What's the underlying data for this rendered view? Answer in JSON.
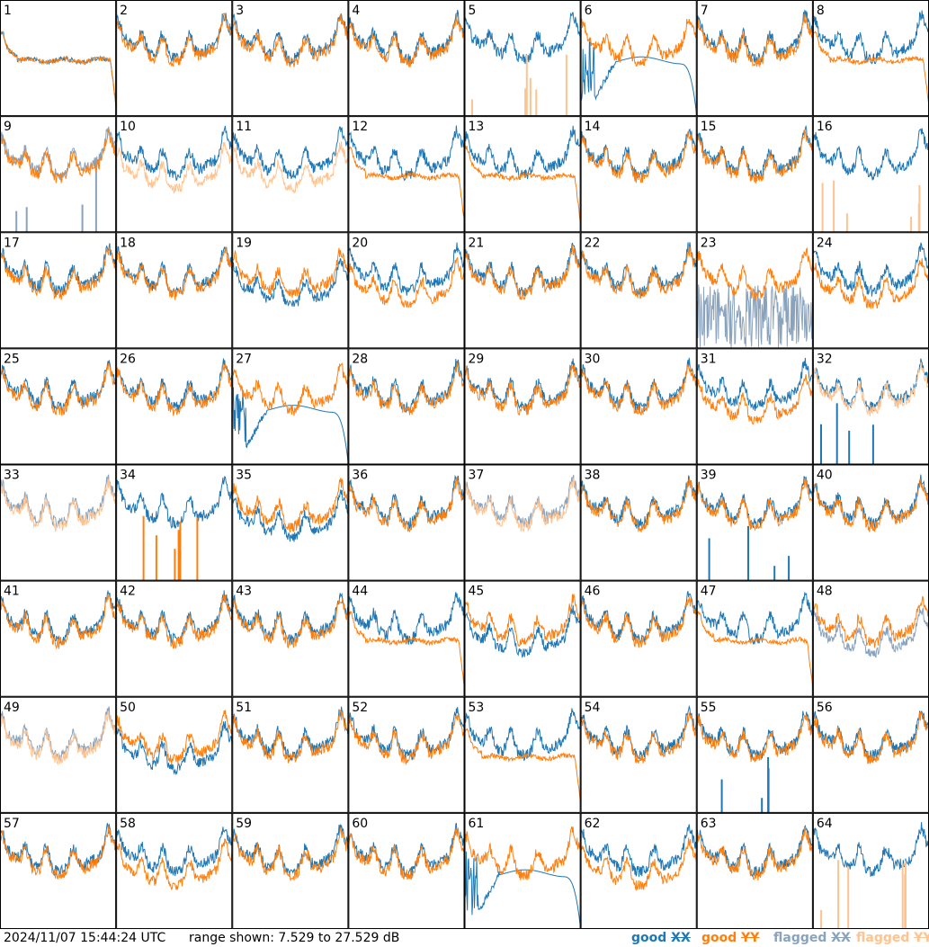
{
  "footer": {
    "timestamp": "2024/11/07 15:44:24 UTC",
    "range_text": "range shown: 7.529 to 27.529 dB"
  },
  "legend": [
    {
      "word": "good",
      "pol": "XX",
      "color": "#1f77b4"
    },
    {
      "word": "good",
      "pol": "YY",
      "color": "#ff7f0e"
    },
    {
      "word": "flagged",
      "pol": "XX",
      "color": "#8aa3bd"
    },
    {
      "word": "flagged",
      "pol": "YY",
      "color": "#ffc390"
    }
  ],
  "colors": {
    "good_xx": "#1f77b4",
    "good_yy": "#ff7f0e",
    "flagged_xx": "#8aa3bd",
    "flagged_yy": "#ffc390",
    "border": "#000000"
  },
  "chart_data": {
    "type": "line",
    "title": "",
    "xlabel": "",
    "ylabel": "",
    "ylim": [
      7.529,
      27.529
    ],
    "units": "dB",
    "grid": false,
    "legend_placement": "bottom-right",
    "rows": 8,
    "cols": 8,
    "panels": [
      {
        "label": "1",
        "xx": "good",
        "yy": "good",
        "xx_kind": "plateau",
        "yy_kind": "plateau"
      },
      {
        "label": "2",
        "xx": "good",
        "yy": "good",
        "xx_kind": "normal",
        "yy_kind": "normal"
      },
      {
        "label": "3",
        "xx": "good",
        "yy": "good",
        "xx_kind": "normal",
        "yy_kind": "normal"
      },
      {
        "label": "4",
        "xx": "good",
        "yy": "good",
        "xx_kind": "normal",
        "yy_kind": "normal"
      },
      {
        "label": "5",
        "xx": "good",
        "yy": "flagged",
        "xx_kind": "normal",
        "yy_kind": "spikes"
      },
      {
        "label": "6",
        "xx": "good",
        "yy": "good",
        "xx_kind": "dead",
        "yy_kind": "normal"
      },
      {
        "label": "7",
        "xx": "good",
        "yy": "good",
        "xx_kind": "normal",
        "yy_kind": "normal"
      },
      {
        "label": "8",
        "xx": "good",
        "yy": "good",
        "xx_kind": "normal",
        "yy_kind": "plateau"
      },
      {
        "label": "9",
        "xx": "flagged",
        "yy": "good",
        "xx_kind": "spikes",
        "yy_kind": "normal"
      },
      {
        "label": "10",
        "xx": "good",
        "yy": "flagged",
        "xx_kind": "normal",
        "yy_kind": "low"
      },
      {
        "label": "11",
        "xx": "good",
        "yy": "flagged",
        "xx_kind": "normal",
        "yy_kind": "low"
      },
      {
        "label": "12",
        "xx": "good",
        "yy": "good",
        "xx_kind": "normal",
        "yy_kind": "plateau"
      },
      {
        "label": "13",
        "xx": "good",
        "yy": "good",
        "xx_kind": "normal",
        "yy_kind": "plateau"
      },
      {
        "label": "14",
        "xx": "good",
        "yy": "good",
        "xx_kind": "normal",
        "yy_kind": "normal"
      },
      {
        "label": "15",
        "xx": "good",
        "yy": "good",
        "xx_kind": "normal",
        "yy_kind": "normal"
      },
      {
        "label": "16",
        "xx": "good",
        "yy": "flagged",
        "xx_kind": "normal",
        "yy_kind": "spikes"
      },
      {
        "label": "17",
        "xx": "good",
        "yy": "good",
        "xx_kind": "normal",
        "yy_kind": "normal"
      },
      {
        "label": "18",
        "xx": "good",
        "yy": "good",
        "xx_kind": "normal",
        "yy_kind": "normal"
      },
      {
        "label": "19",
        "xx": "good",
        "yy": "good",
        "xx_kind": "low",
        "yy_kind": "normal"
      },
      {
        "label": "20",
        "xx": "good",
        "yy": "good",
        "xx_kind": "normal",
        "yy_kind": "low"
      },
      {
        "label": "21",
        "xx": "good",
        "yy": "good",
        "xx_kind": "normal",
        "yy_kind": "normal"
      },
      {
        "label": "22",
        "xx": "good",
        "yy": "good",
        "xx_kind": "normal",
        "yy_kind": "normal"
      },
      {
        "label": "23",
        "xx": "flagged",
        "yy": "good",
        "xx_kind": "noisy",
        "yy_kind": "normal"
      },
      {
        "label": "24",
        "xx": "good",
        "yy": "good",
        "xx_kind": "normal",
        "yy_kind": "low"
      },
      {
        "label": "25",
        "xx": "good",
        "yy": "good",
        "xx_kind": "normal",
        "yy_kind": "normal"
      },
      {
        "label": "26",
        "xx": "good",
        "yy": "good",
        "xx_kind": "normal",
        "yy_kind": "normal"
      },
      {
        "label": "27",
        "xx": "good",
        "yy": "good",
        "xx_kind": "dead",
        "yy_kind": "normal"
      },
      {
        "label": "28",
        "xx": "good",
        "yy": "good",
        "xx_kind": "normal",
        "yy_kind": "normal"
      },
      {
        "label": "29",
        "xx": "good",
        "yy": "good",
        "xx_kind": "normal",
        "yy_kind": "normal"
      },
      {
        "label": "30",
        "xx": "good",
        "yy": "good",
        "xx_kind": "normal",
        "yy_kind": "normal"
      },
      {
        "label": "31",
        "xx": "good",
        "yy": "good",
        "xx_kind": "normal",
        "yy_kind": "low"
      },
      {
        "label": "32",
        "xx": "good",
        "yy": "flagged",
        "xx_kind": "spikes",
        "yy_kind": "normal"
      },
      {
        "label": "33",
        "xx": "flagged",
        "yy": "flagged",
        "xx_kind": "normal",
        "yy_kind": "normal"
      },
      {
        "label": "34",
        "xx": "good",
        "yy": "good",
        "xx_kind": "normal",
        "yy_kind": "spikes"
      },
      {
        "label": "35",
        "xx": "good",
        "yy": "good",
        "xx_kind": "low",
        "yy_kind": "normal"
      },
      {
        "label": "36",
        "xx": "good",
        "yy": "good",
        "xx_kind": "normal",
        "yy_kind": "normal"
      },
      {
        "label": "37",
        "xx": "flagged",
        "yy": "flagged",
        "xx_kind": "normal",
        "yy_kind": "normal"
      },
      {
        "label": "38",
        "xx": "good",
        "yy": "good",
        "xx_kind": "normal",
        "yy_kind": "normal"
      },
      {
        "label": "39",
        "xx": "good",
        "yy": "good",
        "xx_kind": "spikes",
        "yy_kind": "normal"
      },
      {
        "label": "40",
        "xx": "good",
        "yy": "good",
        "xx_kind": "normal",
        "yy_kind": "normal"
      },
      {
        "label": "41",
        "xx": "good",
        "yy": "good",
        "xx_kind": "normal",
        "yy_kind": "normal"
      },
      {
        "label": "42",
        "xx": "good",
        "yy": "good",
        "xx_kind": "normal",
        "yy_kind": "normal"
      },
      {
        "label": "43",
        "xx": "good",
        "yy": "good",
        "xx_kind": "normal",
        "yy_kind": "normal"
      },
      {
        "label": "44",
        "xx": "good",
        "yy": "good",
        "xx_kind": "normal",
        "yy_kind": "plateau"
      },
      {
        "label": "45",
        "xx": "good",
        "yy": "good",
        "xx_kind": "low",
        "yy_kind": "normal"
      },
      {
        "label": "46",
        "xx": "good",
        "yy": "good",
        "xx_kind": "normal",
        "yy_kind": "normal"
      },
      {
        "label": "47",
        "xx": "good",
        "yy": "good",
        "xx_kind": "normal",
        "yy_kind": "plateau"
      },
      {
        "label": "48",
        "xx": "flagged",
        "yy": "good",
        "xx_kind": "low",
        "yy_kind": "normal"
      },
      {
        "label": "49",
        "xx": "flagged",
        "yy": "flagged",
        "xx_kind": "normal",
        "yy_kind": "normal"
      },
      {
        "label": "50",
        "xx": "good",
        "yy": "good",
        "xx_kind": "low",
        "yy_kind": "normal"
      },
      {
        "label": "51",
        "xx": "good",
        "yy": "good",
        "xx_kind": "normal",
        "yy_kind": "normal"
      },
      {
        "label": "52",
        "xx": "good",
        "yy": "good",
        "xx_kind": "normal",
        "yy_kind": "normal"
      },
      {
        "label": "53",
        "xx": "good",
        "yy": "good",
        "xx_kind": "normal",
        "yy_kind": "plateau"
      },
      {
        "label": "54",
        "xx": "good",
        "yy": "good",
        "xx_kind": "normal",
        "yy_kind": "normal"
      },
      {
        "label": "55",
        "xx": "good",
        "yy": "good",
        "xx_kind": "spikes",
        "yy_kind": "normal"
      },
      {
        "label": "56",
        "xx": "good",
        "yy": "good",
        "xx_kind": "normal",
        "yy_kind": "normal"
      },
      {
        "label": "57",
        "xx": "good",
        "yy": "good",
        "xx_kind": "normal",
        "yy_kind": "normal"
      },
      {
        "label": "58",
        "xx": "good",
        "yy": "good",
        "xx_kind": "normal",
        "yy_kind": "low"
      },
      {
        "label": "59",
        "xx": "good",
        "yy": "good",
        "xx_kind": "normal",
        "yy_kind": "normal"
      },
      {
        "label": "60",
        "xx": "good",
        "yy": "good",
        "xx_kind": "normal",
        "yy_kind": "normal"
      },
      {
        "label": "61",
        "xx": "good",
        "yy": "good",
        "xx_kind": "dead",
        "yy_kind": "normal"
      },
      {
        "label": "62",
        "xx": "good",
        "yy": "good",
        "xx_kind": "normal",
        "yy_kind": "low"
      },
      {
        "label": "63",
        "xx": "good",
        "yy": "good",
        "xx_kind": "normal",
        "yy_kind": "normal"
      },
      {
        "label": "64",
        "xx": "good",
        "yy": "flagged",
        "xx_kind": "normal",
        "yy_kind": "spikes"
      }
    ]
  }
}
